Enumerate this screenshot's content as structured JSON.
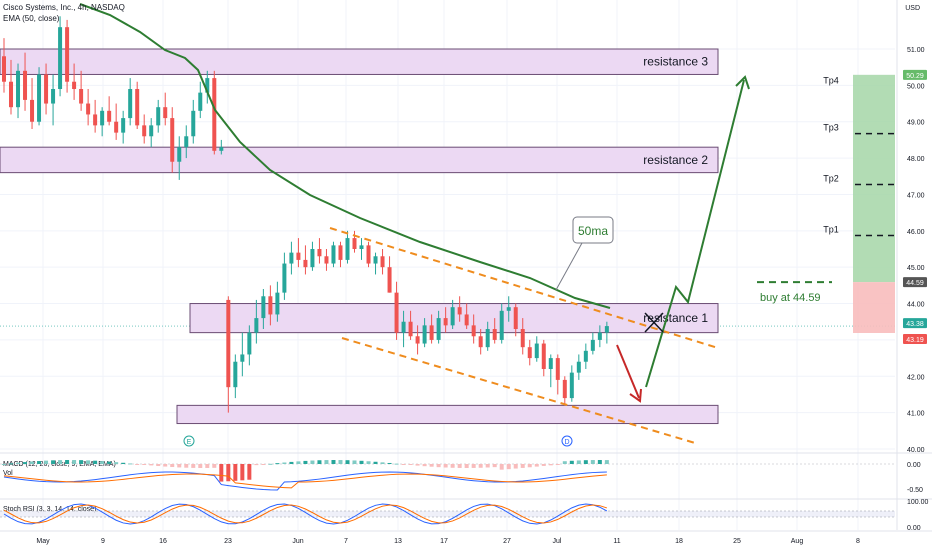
{
  "header": {
    "symbol": "Cisco Systems, Inc., 4h, NASDAQ",
    "ema_label": "EMA (50, close)",
    "currency": "USD"
  },
  "colors": {
    "up": "#26a69a",
    "down": "#ef5350",
    "ema": "#2e7d32",
    "zone_fill": "#ecd9f3",
    "zone_stroke": "#6a4c73",
    "orange": "#ef8c1e",
    "arrow_green": "#2e7d32",
    "arrow_red": "#c62828",
    "tp_fill": "#a5d6a7",
    "sl_fill": "#f8bcbc"
  },
  "chart_data": {
    "type": "candlestick",
    "timeframe": "4h",
    "ylim": [
      39.6,
      52.3
    ],
    "y_ticks": [
      "51.00",
      "50.00",
      "49.00",
      "48.00",
      "47.00",
      "46.00",
      "45.00",
      "44.00",
      "43.00",
      "42.00",
      "41.00",
      "40.00"
    ],
    "x_ticks": [
      "May",
      "9",
      "16",
      "23",
      "Jun",
      "7",
      "13",
      "17",
      "27",
      "Jul",
      "11",
      "18",
      "25",
      "Aug",
      "8"
    ],
    "price_labels": [
      "50.29",
      "44.59",
      "43.38",
      "43.19"
    ],
    "ohlc": [
      [
        50.8,
        51.3,
        49.8,
        50.1
      ],
      [
        50.1,
        50.7,
        49.2,
        49.4
      ],
      [
        49.4,
        50.6,
        49.1,
        50.4
      ],
      [
        50.4,
        50.9,
        49.3,
        49.6
      ],
      [
        49.6,
        50.2,
        48.8,
        49.0
      ],
      [
        49.0,
        50.5,
        48.9,
        50.3
      ],
      [
        50.3,
        50.6,
        49.2,
        49.5
      ],
      [
        49.5,
        50.3,
        48.9,
        49.9
      ],
      [
        49.9,
        51.9,
        49.7,
        51.6
      ],
      [
        51.6,
        51.8,
        49.8,
        50.1
      ],
      [
        50.1,
        50.6,
        49.6,
        49.9
      ],
      [
        49.9,
        50.4,
        49.3,
        49.5
      ],
      [
        49.5,
        49.9,
        48.9,
        49.2
      ],
      [
        49.2,
        49.6,
        48.7,
        48.9
      ],
      [
        48.9,
        49.4,
        48.6,
        49.3
      ],
      [
        49.3,
        49.7,
        48.9,
        49.0
      ],
      [
        49.0,
        49.5,
        48.5,
        48.7
      ],
      [
        48.7,
        49.3,
        48.4,
        49.1
      ],
      [
        49.1,
        50.2,
        48.9,
        49.9
      ],
      [
        49.9,
        50.1,
        48.8,
        48.9
      ],
      [
        48.9,
        49.2,
        48.4,
        48.6
      ],
      [
        48.6,
        49.1,
        48.3,
        48.9
      ],
      [
        48.9,
        49.6,
        48.7,
        49.4
      ],
      [
        49.4,
        49.8,
        48.9,
        49.1
      ],
      [
        49.1,
        49.4,
        47.6,
        47.9
      ],
      [
        47.9,
        48.6,
        47.4,
        48.3
      ],
      [
        48.3,
        48.9,
        48.0,
        48.6
      ],
      [
        48.6,
        49.6,
        48.4,
        49.3
      ],
      [
        49.3,
        50.1,
        49.1,
        49.8
      ],
      [
        49.8,
        50.4,
        49.5,
        50.2
      ],
      [
        50.2,
        50.4,
        48.1,
        48.2
      ],
      [
        48.2,
        48.5,
        48.1,
        48.3
      ],
      [
        44.1,
        44.2,
        41.0,
        41.7
      ],
      [
        41.7,
        42.6,
        41.4,
        42.4
      ],
      [
        42.4,
        43.2,
        42.0,
        42.6
      ],
      [
        42.6,
        43.4,
        42.3,
        43.2
      ],
      [
        43.2,
        44.1,
        42.9,
        43.6
      ],
      [
        43.6,
        44.4,
        43.3,
        44.2
      ],
      [
        44.2,
        44.5,
        43.4,
        43.7
      ],
      [
        43.7,
        44.6,
        43.5,
        44.3
      ],
      [
        44.3,
        45.4,
        44.1,
        45.1
      ],
      [
        45.1,
        45.7,
        44.8,
        45.4
      ],
      [
        45.4,
        45.8,
        45.0,
        45.2
      ],
      [
        45.2,
        45.6,
        44.8,
        45.0
      ],
      [
        45.0,
        45.7,
        44.9,
        45.5
      ],
      [
        45.5,
        45.8,
        45.1,
        45.3
      ],
      [
        45.3,
        45.5,
        44.9,
        45.1
      ],
      [
        45.1,
        45.7,
        45.0,
        45.6
      ],
      [
        45.6,
        45.7,
        45.0,
        45.2
      ],
      [
        45.2,
        46.0,
        45.1,
        45.8
      ],
      [
        45.8,
        46.0,
        45.4,
        45.5
      ],
      [
        45.5,
        45.8,
        45.2,
        45.6
      ],
      [
        45.6,
        45.7,
        45.0,
        45.1
      ],
      [
        45.1,
        45.4,
        44.8,
        45.3
      ],
      [
        45.3,
        45.5,
        44.8,
        45.0
      ],
      [
        45.0,
        45.3,
        44.3,
        44.3
      ],
      [
        44.3,
        44.6,
        43.0,
        43.2
      ],
      [
        43.2,
        43.8,
        42.8,
        43.5
      ],
      [
        43.5,
        43.8,
        43.0,
        43.1
      ],
      [
        43.1,
        43.4,
        42.6,
        42.9
      ],
      [
        42.9,
        43.6,
        42.8,
        43.4
      ],
      [
        43.4,
        43.7,
        42.9,
        43.0
      ],
      [
        43.0,
        43.8,
        42.9,
        43.6
      ],
      [
        43.6,
        43.9,
        43.2,
        43.4
      ],
      [
        43.4,
        44.1,
        43.3,
        43.9
      ],
      [
        43.9,
        44.2,
        43.5,
        43.7
      ],
      [
        43.7,
        44.0,
        43.3,
        43.4
      ],
      [
        43.4,
        43.7,
        42.9,
        43.1
      ],
      [
        43.1,
        43.3,
        42.6,
        42.8
      ],
      [
        42.8,
        43.5,
        42.7,
        43.3
      ],
      [
        43.3,
        43.6,
        42.9,
        43.0
      ],
      [
        43.0,
        44.0,
        42.9,
        43.8
      ],
      [
        43.8,
        44.2,
        43.5,
        43.9
      ],
      [
        43.9,
        44.0,
        43.1,
        43.3
      ],
      [
        43.3,
        43.6,
        42.6,
        42.8
      ],
      [
        42.8,
        43.0,
        42.3,
        42.5
      ],
      [
        42.5,
        43.1,
        42.4,
        42.9
      ],
      [
        42.9,
        43.0,
        42.0,
        42.2
      ],
      [
        42.2,
        42.6,
        41.7,
        42.5
      ],
      [
        42.5,
        42.6,
        41.5,
        41.9
      ],
      [
        41.9,
        42.0,
        41.2,
        41.4
      ],
      [
        41.4,
        42.3,
        41.3,
        42.1
      ],
      [
        42.1,
        42.6,
        41.9,
        42.4
      ],
      [
        42.4,
        42.9,
        42.2,
        42.7
      ],
      [
        42.7,
        43.2,
        42.6,
        43.0
      ],
      [
        43.0,
        43.4,
        42.8,
        43.2
      ],
      [
        43.2,
        43.5,
        42.9,
        43.38
      ]
    ],
    "zones": [
      {
        "label": "resistance 3",
        "top": 51.0,
        "bottom": 50.3
      },
      {
        "label": "resistance 2",
        "top": 48.3,
        "bottom": 47.6
      },
      {
        "label": "resistance 1",
        "top": 44.0,
        "bottom": 43.2
      },
      {
        "label": "",
        "top": 41.2,
        "bottom": 40.7
      }
    ],
    "annotations": {
      "ma_label": "50ma",
      "buy": "buy at 44.59",
      "targets": [
        {
          "label": "Tp4",
          "price": 50.0
        },
        {
          "label": "Tp3",
          "price": 48.7
        },
        {
          "label": "Tp2",
          "price": 47.3
        },
        {
          "label": "Tp1",
          "price": 45.9
        }
      ],
      "buy_price": 44.59,
      "target_top": 50.29,
      "stop": 43.19,
      "events": [
        "E",
        "D"
      ]
    },
    "macd": {
      "label": "MACD (12, 26, close, 9, EMA, EMA)",
      "ticks": [
        "0.00",
        "-0.50"
      ]
    },
    "vol": {
      "label": "Vol"
    },
    "stoch": {
      "label": "Stoch RSI (3, 3, 14, 14, close)",
      "ticks": [
        "100.00",
        "0.00"
      ]
    }
  }
}
